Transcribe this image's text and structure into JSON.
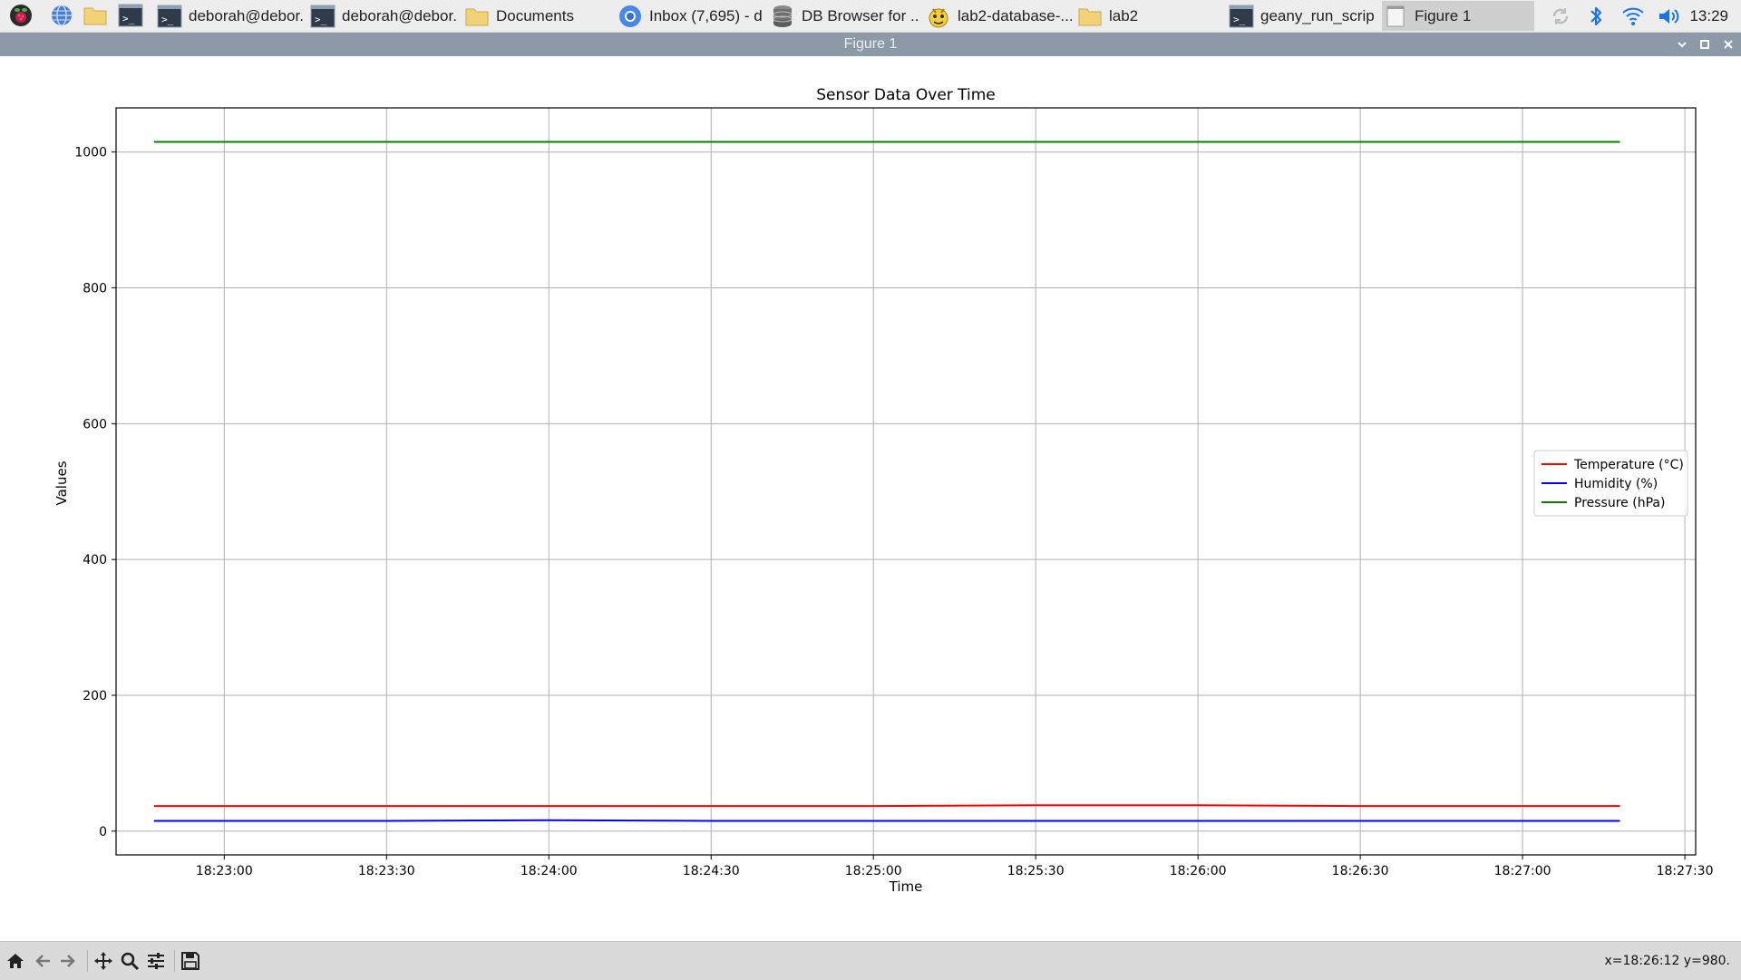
{
  "taskbar": {
    "launchers": [
      {
        "icon": "raspberry-menu-icon"
      },
      {
        "icon": "web-browser-icon"
      },
      {
        "icon": "file-manager-icon"
      },
      {
        "icon": "terminal-icon"
      }
    ],
    "tasks": [
      {
        "label": "deborah@debor..",
        "icon": "terminal-icon",
        "active": false
      },
      {
        "label": "deborah@debor..",
        "icon": "terminal-icon",
        "active": false
      },
      {
        "label": "Documents",
        "icon": "folder-icon",
        "active": false
      },
      {
        "label": "Inbox (7,695) - d..",
        "icon": "chromium-icon",
        "active": false
      },
      {
        "label": "DB Browser for ..",
        "icon": "database-icon",
        "active": false
      },
      {
        "label": "lab2-database-....",
        "icon": "geany-icon",
        "active": false
      },
      {
        "label": "lab2",
        "icon": "folder-icon",
        "active": false
      },
      {
        "label": "geany_run_scrip..",
        "icon": "terminal-icon",
        "active": false
      },
      {
        "label": "Figure 1",
        "icon": "window-icon",
        "active": true
      }
    ],
    "tray": [
      "sync-icon",
      "bluetooth-icon",
      "wifi-icon",
      "volume-icon"
    ],
    "clock": "13:29"
  },
  "window": {
    "title": "Figure 1",
    "controls": [
      "minimize-icon",
      "maximize-icon",
      "close-icon"
    ]
  },
  "chart_data": {
    "type": "line",
    "title": "Sensor Data Over Time",
    "xlabel": "Time",
    "ylabel": "Values",
    "x_ticks": [
      "18:23:00",
      "18:23:30",
      "18:24:00",
      "18:24:30",
      "18:25:00",
      "18:25:30",
      "18:26:00",
      "18:26:30",
      "18:27:00",
      "18:27:30"
    ],
    "y_ticks": [
      "0",
      "200",
      "400",
      "600",
      "800",
      "1000"
    ],
    "xlim": [
      "18:22:40",
      "18:27:32"
    ],
    "ylim": [
      -35,
      1065
    ],
    "grid": true,
    "legend_position": "center-right",
    "x": [
      "18:22:47",
      "18:23:00",
      "18:23:30",
      "18:24:00",
      "18:24:30",
      "18:25:00",
      "18:25:30",
      "18:26:00",
      "18:26:30",
      "18:27:00",
      "18:27:18"
    ],
    "series": [
      {
        "name": "Temperature (°C)",
        "color": "#ff0000",
        "values": [
          37,
          37,
          37,
          37,
          37,
          37,
          38,
          38,
          37,
          37,
          37
        ]
      },
      {
        "name": "Humidity (%)",
        "color": "#0000ff",
        "values": [
          15,
          15,
          15,
          16,
          15,
          15,
          15,
          15,
          15,
          15,
          15
        ]
      },
      {
        "name": "Pressure (hPa)",
        "color": "#008000",
        "values": [
          1015,
          1015,
          1015,
          1015,
          1015,
          1015,
          1015,
          1015,
          1015,
          1015,
          1015
        ]
      }
    ]
  },
  "toolbar": {
    "buttons": [
      "home-icon",
      "back-icon",
      "forward-icon",
      "pan-icon",
      "zoom-icon",
      "configure-subplots-icon",
      "save-icon"
    ],
    "coordinates": "x=18:26:12 y=980."
  }
}
